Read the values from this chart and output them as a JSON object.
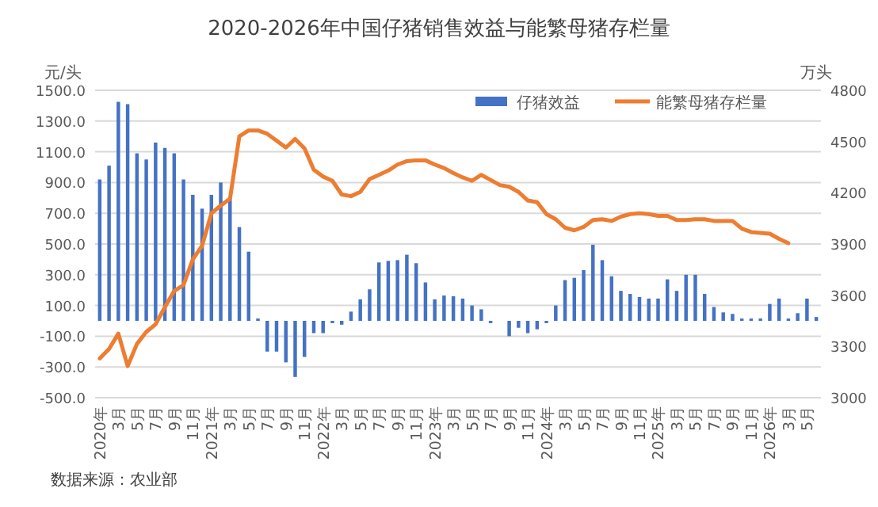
{
  "chart_data": {
    "type": "bar",
    "title": "2020-2026年中国仔猪销售效益与能繁母猪存栏量",
    "ylabel": "元/头",
    "y2label": "万头",
    "annotations": [
      "数据来源：农业部"
    ],
    "categories": [
      "2020年",
      null,
      "3月",
      null,
      "5月",
      null,
      "7月",
      null,
      "9月",
      null,
      "11月",
      null,
      "2021年",
      null,
      "3月",
      null,
      "5月",
      null,
      "7月",
      null,
      "9月",
      null,
      "11月",
      null,
      "2022年",
      null,
      "3月",
      null,
      "5月",
      null,
      "7月",
      null,
      "9月",
      null,
      "11月",
      null,
      "2023年",
      null,
      "3月",
      null,
      "5月",
      null,
      "7月",
      null,
      "9月",
      null,
      "11月",
      null,
      "2024年",
      null,
      "3月",
      null,
      "5月",
      null,
      "7月",
      null,
      "9月",
      null,
      "11月",
      null,
      "2025年",
      null,
      "3月",
      null,
      "5月",
      null,
      "7月",
      null,
      "9月",
      null,
      "11月",
      null,
      "2026年",
      null,
      "3月",
      null,
      "5月",
      null
    ],
    "series": [
      {
        "name": "仔猪效益",
        "color": "#4472c4",
        "values": [
          920,
          1010,
          1425,
          1410,
          1090,
          1050,
          1160,
          1125,
          1090,
          920,
          820,
          730,
          820,
          900,
          800,
          610,
          450,
          15,
          -200,
          -200,
          -270,
          -365,
          -235,
          -80,
          -80,
          -15,
          -25,
          60,
          140,
          205,
          380,
          390,
          395,
          430,
          375,
          250,
          140,
          165,
          160,
          145,
          100,
          75,
          -15,
          0,
          -100,
          -45,
          -80,
          -55,
          -15,
          100,
          265,
          280,
          330,
          495,
          395,
          290,
          195,
          175,
          155,
          145,
          145,
          270,
          195,
          300,
          300,
          175,
          90,
          55,
          45,
          15,
          15,
          15,
          110,
          145,
          15,
          50,
          145,
          25
        ]
      },
      {
        "name": "能繁母猪存栏量",
        "type": "line",
        "axis": "y2",
        "color": "#ed7d31",
        "values": [
          3230,
          3285,
          3375,
          3185,
          3315,
          3385,
          3430,
          3530,
          3625,
          3660,
          3810,
          3890,
          4080,
          4125,
          4165,
          4530,
          4565,
          4565,
          4545,
          4505,
          4465,
          4515,
          4460,
          4335,
          4295,
          4270,
          4190,
          4180,
          4205,
          4280,
          4305,
          4330,
          4365,
          4385,
          4390,
          4390,
          4365,
          4345,
          4315,
          4290,
          4270,
          4305,
          4275,
          4245,
          4235,
          4205,
          4155,
          4145,
          4075,
          4045,
          3995,
          3980,
          4000,
          4040,
          4045,
          4035,
          4060,
          4075,
          4080,
          4075,
          4065,
          4065,
          4040,
          4040,
          4045,
          4045,
          4035,
          4035,
          4035,
          3990,
          3970,
          3965,
          3960,
          3930,
          3905,
          null,
          null,
          null
        ]
      }
    ],
    "ylim": [
      -500,
      1500
    ],
    "yticks": [
      {
        "value": -500,
        "label": "-500.0"
      },
      {
        "value": -300,
        "label": "-300.0"
      },
      {
        "value": -100,
        "label": "-100.0"
      },
      {
        "value": 100,
        "label": "100.0"
      },
      {
        "value": 300,
        "label": "300.0"
      },
      {
        "value": 500,
        "label": "500.0"
      },
      {
        "value": 700,
        "label": "700.0"
      },
      {
        "value": 900,
        "label": "900.0"
      },
      {
        "value": 1100,
        "label": "1100.0"
      },
      {
        "value": 1300,
        "label": "1300.0"
      },
      {
        "value": 1500,
        "label": "1500.0"
      }
    ],
    "y2lim": [
      3000,
      4800
    ],
    "y2ticks": [
      3000,
      3300,
      3600,
      3900,
      4200,
      4500,
      4800
    ],
    "grid": "y",
    "legend": "top right"
  }
}
